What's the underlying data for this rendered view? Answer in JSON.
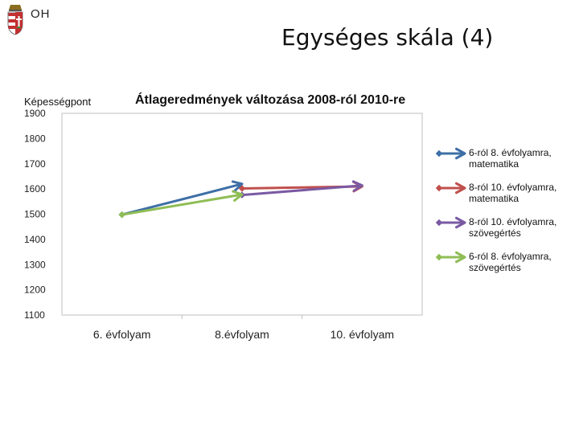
{
  "slide": {
    "logo_text": "OH",
    "title": "Egységes skála (4)"
  },
  "chart_data": {
    "type": "line",
    "title": "Átlageredmények változása 2008-ról 2010-re",
    "ylabel": "Képességpont",
    "xlabel": "",
    "categories": [
      "6. évfolyam",
      "8.évfolyam",
      "10. évfolyam"
    ],
    "ylim": [
      1100,
      1900
    ],
    "yticks": [
      1900,
      1800,
      1700,
      1600,
      1500,
      1400,
      1300,
      1200,
      1100
    ],
    "grid": false,
    "legend": "right",
    "series": [
      {
        "name": "6-ról 8. évfolyamra, matematika",
        "color": "#3e6fa6",
        "values": [
          1498,
          1620,
          null
        ]
      },
      {
        "name": "8-ról 10. évfolyamra, matematika",
        "color": "#c0504d",
        "values": [
          null,
          1602,
          1610
        ]
      },
      {
        "name": "8-ról 10. évfolyamra, szövegértés",
        "color": "#7a5aa3",
        "values": [
          null,
          1576,
          1614
        ]
      },
      {
        "name": "6-ról 8. évfolyamra, szövegértés",
        "color": "#8fbd55",
        "values": [
          1498,
          1578,
          null
        ]
      }
    ]
  }
}
